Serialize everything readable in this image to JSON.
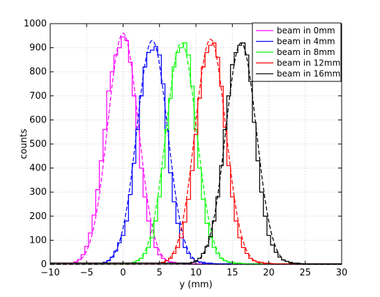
{
  "chart_data": {
    "type": "line",
    "xlabel": "y (mm)",
    "ylabel": "counts",
    "xlim": [
      -10,
      30
    ],
    "ylim": [
      0,
      1000
    ],
    "xticks": [
      -10,
      -5,
      0,
      5,
      10,
      15,
      20,
      25,
      30
    ],
    "yticks": [
      0,
      100,
      200,
      300,
      400,
      500,
      600,
      700,
      800,
      900,
      1000
    ],
    "grid": true,
    "legend_position": "top-right",
    "bin_width": 0.5,
    "series": [
      {
        "name": "beam in 0mm",
        "color": "#ff00ff",
        "hist_x": [
          -7,
          -6.5,
          -6,
          -5.5,
          -5,
          -4.5,
          -4,
          -3.5,
          -3,
          -2.5,
          -2,
          -1.5,
          -1,
          -0.5,
          0,
          0.5,
          1,
          1.5,
          2,
          2.5,
          3,
          3.5,
          4,
          4.5,
          5,
          5.5,
          6,
          6.5,
          7,
          7.5,
          8,
          8.5,
          9
        ],
        "hist_counts": [
          5,
          10,
          20,
          40,
          75,
          130,
          205,
          310,
          430,
          560,
          720,
          800,
          870,
          900,
          945,
          930,
          840,
          700,
          560,
          400,
          280,
          180,
          110,
          70,
          40,
          25,
          15,
          10,
          8,
          5,
          5,
          3,
          2
        ],
        "fit": {
          "mean": 0,
          "sigma": 2.1,
          "amplitude": 960
        }
      },
      {
        "name": "beam in 4mm",
        "color": "#0000ff",
        "hist_x": [
          -3,
          -2.5,
          -2,
          -1.5,
          -1,
          -0.5,
          0,
          0.5,
          1,
          1.5,
          2,
          2.5,
          3,
          3.5,
          4,
          4.5,
          5,
          5.5,
          6,
          6.5,
          7,
          7.5,
          8,
          8.5,
          9,
          9.5,
          10,
          10.5,
          11,
          11.5,
          12,
          12.5,
          13
        ],
        "hist_counts": [
          5,
          8,
          15,
          30,
          55,
          90,
          120,
          180,
          290,
          420,
          560,
          700,
          820,
          880,
          890,
          905,
          870,
          750,
          560,
          380,
          260,
          170,
          110,
          70,
          45,
          25,
          15,
          10,
          8,
          5,
          5,
          3,
          2
        ],
        "fit": {
          "mean": 4,
          "sigma": 2.1,
          "amplitude": 930
        }
      },
      {
        "name": "beam in 8mm",
        "color": "#00ff00",
        "hist_x": [
          1,
          1.5,
          2,
          2.5,
          3,
          3.5,
          4,
          4.5,
          5,
          5.5,
          6,
          6.5,
          7,
          7.5,
          8,
          8.5,
          9,
          9.5,
          10,
          10.5,
          11,
          11.5,
          12,
          12.5,
          13,
          13.5,
          14,
          14.5,
          15,
          15.5,
          16,
          16.5,
          17
        ],
        "hist_counts": [
          5,
          8,
          15,
          25,
          45,
          70,
          110,
          180,
          280,
          400,
          560,
          690,
          820,
          880,
          900,
          920,
          870,
          740,
          560,
          400,
          270,
          170,
          110,
          70,
          45,
          25,
          15,
          10,
          8,
          5,
          5,
          3,
          2
        ],
        "fit": {
          "mean": 8,
          "sigma": 2.1,
          "amplitude": 920
        }
      },
      {
        "name": "beam in 12mm",
        "color": "#ff0000",
        "hist_x": [
          5,
          5.5,
          6,
          6.5,
          7,
          7.5,
          8,
          8.5,
          9,
          9.5,
          10,
          10.5,
          11,
          11.5,
          12,
          12.5,
          13,
          13.5,
          14,
          14.5,
          15,
          15.5,
          16,
          16.5,
          17,
          17.5,
          18,
          18.5,
          19,
          19.5,
          20,
          20.5,
          21
        ],
        "hist_counts": [
          5,
          8,
          15,
          25,
          45,
          70,
          110,
          175,
          270,
          390,
          540,
          690,
          820,
          880,
          910,
          920,
          860,
          740,
          570,
          410,
          280,
          180,
          110,
          70,
          45,
          25,
          15,
          10,
          8,
          5,
          5,
          3,
          2
        ],
        "fit": {
          "mean": 12,
          "sigma": 2.1,
          "amplitude": 935
        }
      },
      {
        "name": "beam in 16mm",
        "color": "#000000",
        "hist_x": [
          9,
          9.5,
          10,
          10.5,
          11,
          11.5,
          12,
          12.5,
          13,
          13.5,
          14,
          14.5,
          15,
          15.5,
          16,
          16.5,
          17,
          17.5,
          18,
          18.5,
          19,
          19.5,
          20,
          20.5,
          21,
          21.5,
          22,
          22.5,
          23,
          23.5,
          24,
          24.5,
          25
        ],
        "hist_counts": [
          5,
          8,
          15,
          25,
          45,
          75,
          115,
          180,
          280,
          410,
          560,
          700,
          830,
          880,
          910,
          920,
          870,
          760,
          590,
          430,
          300,
          200,
          120,
          80,
          50,
          30,
          18,
          12,
          8,
          5,
          5,
          3,
          2
        ],
        "fit": {
          "mean": 16.2,
          "sigma": 2.1,
          "amplitude": 920
        }
      }
    ]
  }
}
